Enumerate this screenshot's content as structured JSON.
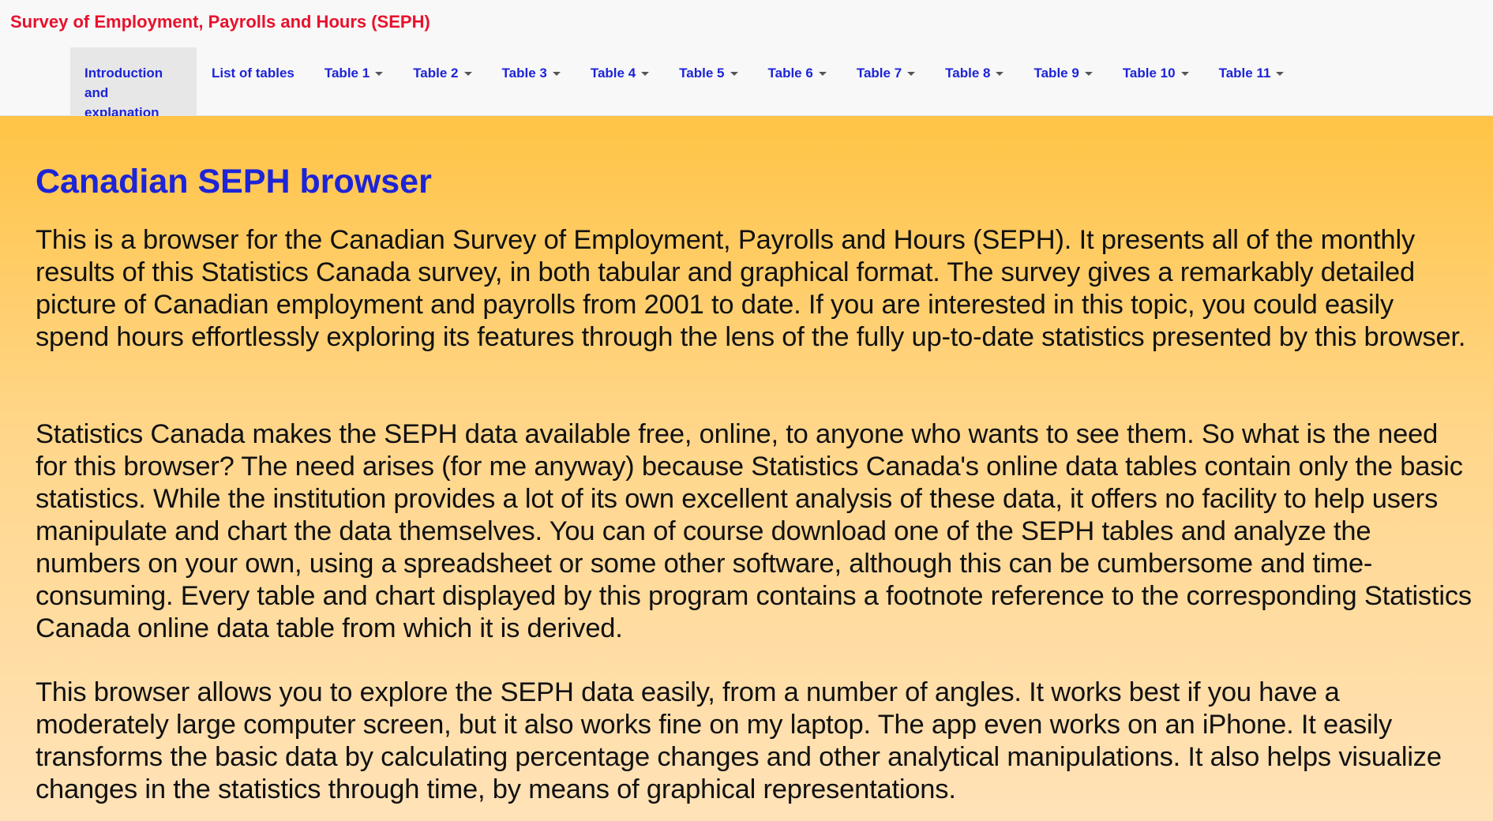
{
  "navbar": {
    "brand": "Survey of Employment, Payrolls and Hours (SEPH)",
    "items": [
      {
        "label": "Introduction and explanation",
        "dropdown": false,
        "active": true
      },
      {
        "label": "List of tables",
        "dropdown": false,
        "active": false
      },
      {
        "label": "Table 1",
        "dropdown": true,
        "active": false
      },
      {
        "label": "Table 2",
        "dropdown": true,
        "active": false
      },
      {
        "label": "Table 3",
        "dropdown": true,
        "active": false
      },
      {
        "label": "Table 4",
        "dropdown": true,
        "active": false
      },
      {
        "label": "Table 5",
        "dropdown": true,
        "active": false
      },
      {
        "label": "Table 6",
        "dropdown": true,
        "active": false
      },
      {
        "label": "Table 7",
        "dropdown": true,
        "active": false
      },
      {
        "label": "Table 8",
        "dropdown": true,
        "active": false
      },
      {
        "label": "Table 9",
        "dropdown": true,
        "active": false
      },
      {
        "label": "Table 10",
        "dropdown": true,
        "active": false
      },
      {
        "label": "Table 11",
        "dropdown": true,
        "active": false
      }
    ]
  },
  "main": {
    "title": "Canadian SEPH browser",
    "paragraphs": [
      "This is a browser for the Canadian Survey of Employment, Payrolls and Hours (SEPH). It presents all of the monthly results of this Statistics Canada survey, in both tabular and graphical format. The survey gives a remarkably detailed picture of Canadian employment and payrolls from 2001 to date. If you are interested in this topic, you could easily spend hours effortlessly exploring its features through the lens of the fully up-to-date statistics presented by this browser.",
      "Statistics Canada makes the SEPH data available free, online, to anyone who wants to see them. So what is the need for this browser? The need arises (for me anyway) because Statistics Canada's online data tables contain only the basic statistics. While the institution provides a lot of its own excellent analysis of these data, it offers no facility to help users manipulate and chart the data themselves. You can of course download one of the SEPH tables and analyze the numbers on your own, using a spreadsheet or some other software, although this can be cumbersome and time-consuming. Every table and chart displayed by this program contains a footnote reference to the corresponding Statistics Canada online data table from which it is derived.",
      "This browser allows you to explore the SEPH data easily, from a number of angles. It works best if you have a moderately large computer screen, but it also works fine on my laptop. The app even works on an iPhone. It easily transforms the basic data by calculating percentage changes and other analytical manipulations. It also helps visualize changes in the statistics through time, by means of graphical representations."
    ]
  },
  "colors": {
    "brand": "#e8112d",
    "link": "#1d24d6",
    "background_top": "#ffc446",
    "background_bottom": "#ffe2b8"
  }
}
